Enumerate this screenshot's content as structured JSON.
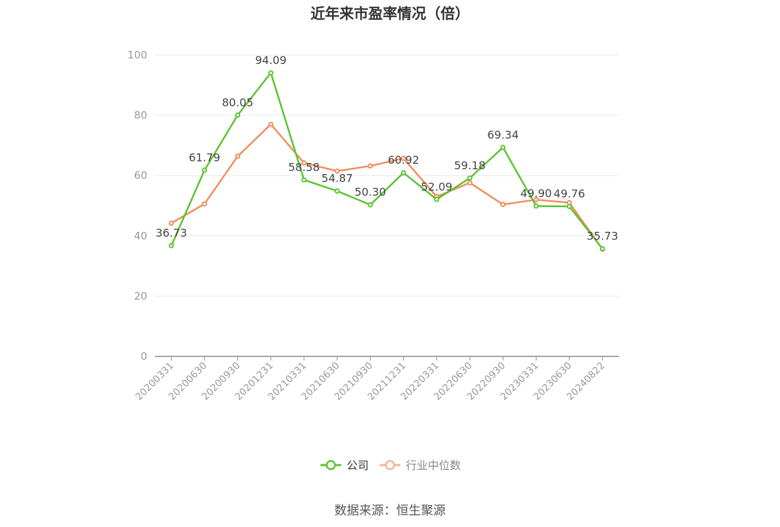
{
  "title": "近年来市盈率情况（倍）",
  "source": "数据来源：恒生聚源",
  "chart_data": {
    "type": "line",
    "title": "近年来市盈率情况（倍）",
    "xlabel": "",
    "ylabel": "",
    "ylim": [
      0,
      100
    ],
    "yticks": [
      0,
      20,
      40,
      60,
      80,
      100
    ],
    "grid": true,
    "legend_position": "bottom-center",
    "categories": [
      "20200331",
      "20200630",
      "20200930",
      "20201231",
      "20210331",
      "20210630",
      "20210930",
      "20211231",
      "20220331",
      "20220630",
      "20220930",
      "20230331",
      "20230630",
      "20240822"
    ],
    "series": [
      {
        "name": "公司",
        "color": "#5ac42e",
        "values": [
          36.73,
          61.79,
          80.05,
          94.09,
          58.58,
          54.87,
          50.3,
          60.92,
          52.09,
          59.18,
          69.34,
          49.9,
          49.76,
          35.73
        ],
        "labels": [
          "36.73",
          "61.79",
          "80.05",
          "94.09",
          "58.58",
          "54.87",
          "50.30",
          "60.92",
          "52.09",
          "59.18",
          "69.34",
          "49.90",
          "49.76",
          "35.73"
        ]
      },
      {
        "name": "行业中位数",
        "color": "#f28c5a",
        "values": [
          44.2,
          50.6,
          66.4,
          77.0,
          64.2,
          61.5,
          63.2,
          65.7,
          53.0,
          57.6,
          50.4,
          52.0,
          51.0,
          35.6
        ]
      }
    ]
  }
}
